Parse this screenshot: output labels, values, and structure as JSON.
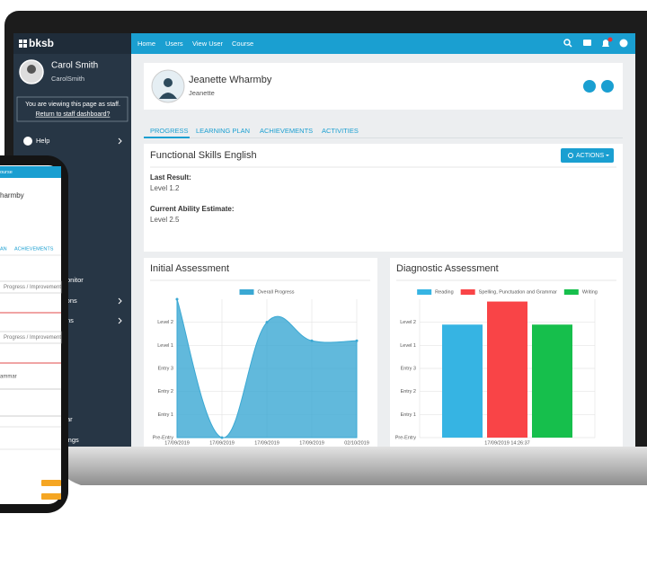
{
  "app": {
    "logo": "bksb",
    "nav": [
      "Home",
      "Users",
      "View User",
      "Course"
    ]
  },
  "sidebar": {
    "name": "Carol Smith",
    "username": "CarolSmith",
    "notice": "You are viewing this page as staff.",
    "link": "Return to staff dashboard?",
    "items": [
      "Help",
      "onitor",
      "ions",
      "ns",
      "ar",
      "ings"
    ]
  },
  "profile": {
    "name": "Jeanette Wharmby",
    "username": "Jeanette"
  },
  "tabs": [
    "PROGRESS",
    "LEARNING PLAN",
    "ACHIEVEMENTS",
    "ACTIVITIES"
  ],
  "course": {
    "title": "Functional Skills English",
    "actions": "ACTIONS",
    "last_result_label": "Last Result:",
    "last_result": "Level 1.2",
    "estimate_label": "Current Ability Estimate:",
    "estimate": "Level 2.5"
  },
  "chart_data": [
    {
      "type": "area",
      "title": "Initial Assessment",
      "categories": [
        "17/09/2019",
        "17/09/2019",
        "17/09/2019",
        "17/09/2019",
        "02/10/2019"
      ],
      "series": [
        {
          "name": "Overall Progress",
          "color": "#3aa8d3",
          "values": [
            6,
            0,
            5,
            4.2,
            4.2
          ]
        }
      ],
      "ylim": [
        0,
        6
      ],
      "yticks": [
        {
          "value": 0,
          "label": "Pre-Entry"
        },
        {
          "value": 1,
          "label": "Entry 1"
        },
        {
          "value": 2,
          "label": "Entry 2"
        },
        {
          "value": 3,
          "label": "Entry 3"
        },
        {
          "value": 4,
          "label": "Level 1"
        },
        {
          "value": 5,
          "label": "Level 2"
        }
      ],
      "grid": true
    },
    {
      "type": "bar",
      "title": "Diagnostic Assessment",
      "categories": [
        "17/09/2019 14:26:37"
      ],
      "series": [
        {
          "name": "Reading",
          "color": "#36b4e3",
          "values": [
            4.9
          ]
        },
        {
          "name": "Spelling, Punctuation and Grammar",
          "color": "#f94447",
          "values": [
            5.9
          ]
        },
        {
          "name": "Writing",
          "color": "#16bf4c",
          "values": [
            4.9
          ]
        }
      ],
      "ylim": [
        0,
        6
      ],
      "yticks": [
        {
          "value": 0,
          "label": "Pre-Entry"
        },
        {
          "value": 1,
          "label": "Entry 1"
        },
        {
          "value": 2,
          "label": "Entry 2"
        },
        {
          "value": 3,
          "label": "Entry 3"
        },
        {
          "value": 4,
          "label": "Level 1"
        },
        {
          "value": 5,
          "label": "Level 2"
        }
      ],
      "grid": true
    }
  ],
  "phone": {
    "nav": "ourse",
    "name": "harmby",
    "tabs": [
      "AN",
      "ACHIEVEMENTS"
    ],
    "fields": [
      "Progress / Improvement",
      "Progress / Improvement"
    ],
    "row": "ammar"
  }
}
